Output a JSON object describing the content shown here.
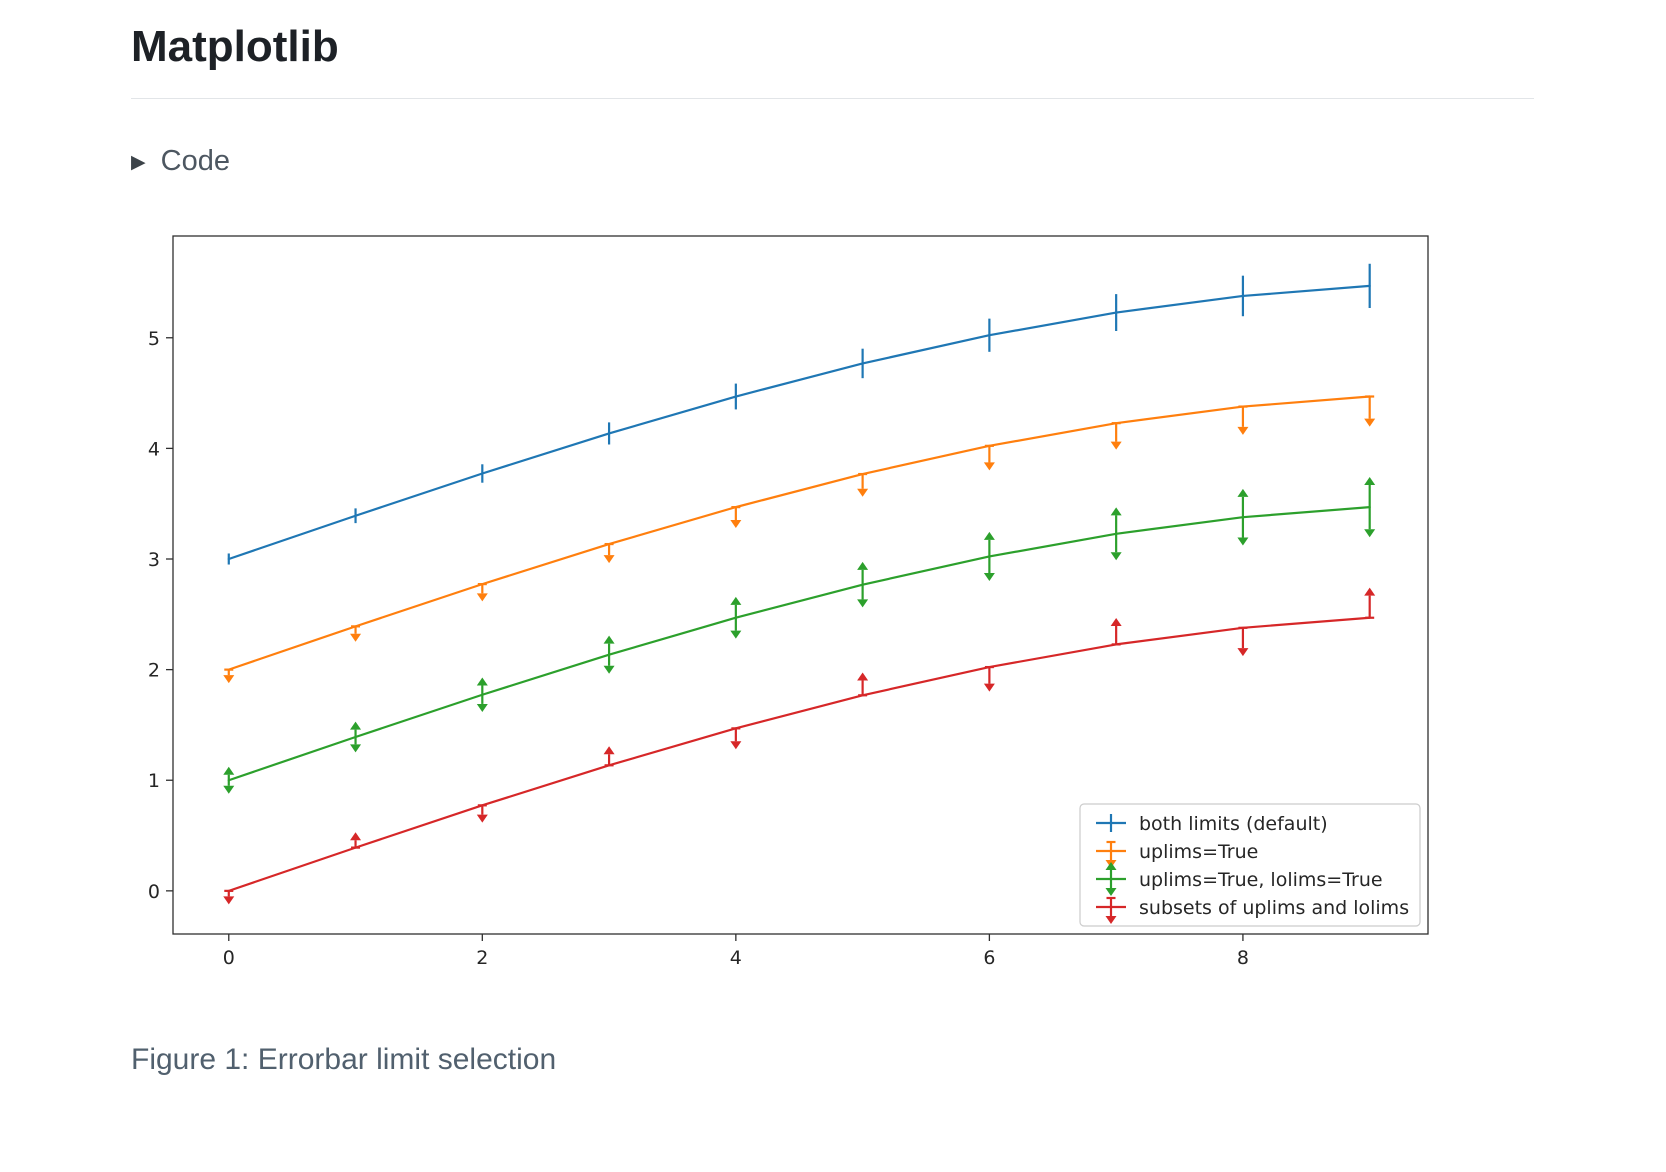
{
  "page": {
    "title": "Matplotlib",
    "code_toggle_label": "Code",
    "figure_caption": "Figure 1: Errorbar limit selection"
  },
  "chart_data": {
    "type": "line",
    "title": "",
    "xlabel": "",
    "ylabel": "",
    "grid": false,
    "x": [
      0,
      1,
      2,
      3,
      4,
      5,
      6,
      7,
      8,
      9
    ],
    "xticks": [
      0,
      2,
      4,
      6,
      8
    ],
    "yticks": [
      0,
      1,
      2,
      3,
      4,
      5
    ],
    "xlim": [
      -0.44,
      9.46
    ],
    "ylim": [
      -0.39,
      5.92
    ],
    "yerr": [
      0.05,
      0.0667,
      0.0833,
      0.1,
      0.1167,
      0.1333,
      0.15,
      0.1667,
      0.1833,
      0.2
    ],
    "legend": {
      "position": "lower right"
    },
    "axis_color": "#2f2f2f",
    "tick_label_color": "#262626",
    "legend_border_color": "#cccccc",
    "series": [
      {
        "name": "both limits (default)",
        "color": "#1f77b4",
        "values": [
          3.0,
          3.391,
          3.773,
          4.135,
          4.469,
          4.768,
          5.023,
          5.228,
          5.378,
          5.469
        ],
        "uplims": [
          false,
          false,
          false,
          false,
          false,
          false,
          false,
          false,
          false,
          false
        ],
        "lolims": [
          false,
          false,
          false,
          false,
          false,
          false,
          false,
          false,
          false,
          false
        ],
        "legend_glyph": "bars"
      },
      {
        "name": "uplims=True",
        "color": "#ff7f0e",
        "values": [
          2.0,
          2.391,
          2.773,
          3.135,
          3.469,
          3.768,
          4.023,
          4.228,
          4.378,
          4.469
        ],
        "uplims": [
          true,
          true,
          true,
          true,
          true,
          true,
          true,
          true,
          true,
          true
        ],
        "lolims": [
          false,
          false,
          false,
          false,
          false,
          false,
          false,
          false,
          false,
          false
        ],
        "legend_glyph": "uplims"
      },
      {
        "name": "uplims=True, lolims=True",
        "color": "#2ca02c",
        "values": [
          1.0,
          1.391,
          1.773,
          2.135,
          2.469,
          2.768,
          3.023,
          3.228,
          3.378,
          3.469
        ],
        "uplims": [
          true,
          true,
          true,
          true,
          true,
          true,
          true,
          true,
          true,
          true
        ],
        "lolims": [
          true,
          true,
          true,
          true,
          true,
          true,
          true,
          true,
          true,
          true
        ],
        "legend_glyph": "both"
      },
      {
        "name": "subsets of uplims and lolims",
        "color": "#d62728",
        "values": [
          0.0,
          0.391,
          0.773,
          1.135,
          1.469,
          1.768,
          2.023,
          2.228,
          2.378,
          2.469
        ],
        "uplims": [
          true,
          false,
          true,
          false,
          true,
          false,
          true,
          false,
          true,
          false
        ],
        "lolims": [
          false,
          true,
          false,
          true,
          false,
          true,
          false,
          true,
          false,
          true
        ],
        "legend_glyph": "uplims"
      }
    ]
  }
}
